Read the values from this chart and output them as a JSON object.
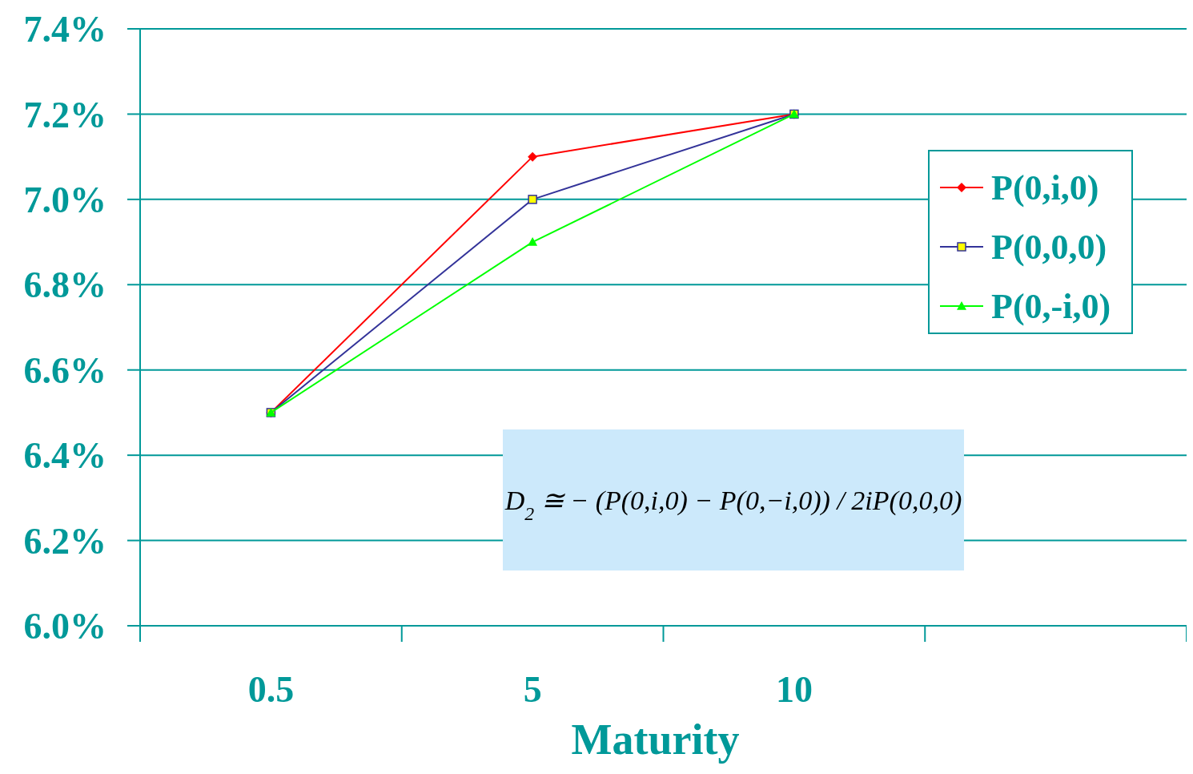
{
  "chart_data": {
    "type": "line",
    "xlabel": "Maturity",
    "categories": [
      "0.5",
      "5",
      "10",
      null
    ],
    "series": [
      {
        "name": "P(0,i,0)",
        "color": "#ff0000",
        "marker": "diamond",
        "values": [
          6.5,
          7.1,
          7.2,
          null
        ]
      },
      {
        "name": "P(0,0,0)",
        "color": "#333399",
        "marker": "square",
        "values": [
          6.5,
          7.0,
          7.2,
          null
        ]
      },
      {
        "name": "P(0,-i,0)",
        "color": "#00ff00",
        "marker": "triangle",
        "values": [
          6.5,
          6.9,
          7.2,
          null
        ]
      }
    ],
    "ylim": [
      6.0,
      7.4
    ],
    "yticks": [
      {
        "value": 6.0,
        "label": "6.0%"
      },
      {
        "value": 6.2,
        "label": "6.2%"
      },
      {
        "value": 6.4,
        "label": "6.4%"
      },
      {
        "value": 6.6,
        "label": "6.6%"
      },
      {
        "value": 6.8,
        "label": "6.8%"
      },
      {
        "value": 7.0,
        "label": "7.0%"
      },
      {
        "value": 7.2,
        "label": "7.2%"
      },
      {
        "value": 7.4,
        "label": "7.4%"
      }
    ],
    "grid": "y",
    "legend": "right",
    "line_style": "solid",
    "annotations": [
      "D$_{2}$ ≅ − (P(0,i,0) − P(0,−i,0)) / 2iP(0,0,0)"
    ]
  }
}
